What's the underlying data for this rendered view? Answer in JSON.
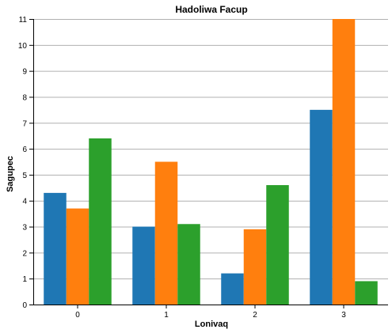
{
  "chart_data": {
    "type": "bar",
    "title": "Hadoliwa Facup",
    "xlabel": "Lonivaq",
    "ylabel": "Sagupec",
    "categories": [
      "0",
      "1",
      "2",
      "3"
    ],
    "series": [
      {
        "color": "#1f77b4",
        "values": [
          4.3,
          3.0,
          1.2,
          7.5
        ]
      },
      {
        "color": "#ff7f0e",
        "values": [
          3.7,
          5.5,
          2.9,
          11.0
        ]
      },
      {
        "color": "#2ca02c",
        "values": [
          6.4,
          3.1,
          4.6,
          0.9
        ]
      }
    ],
    "ylim": [
      0,
      11
    ],
    "yticks": [
      0,
      1,
      2,
      3,
      4,
      5,
      6,
      7,
      8,
      9,
      10,
      11
    ],
    "grid": true,
    "legend": "none"
  }
}
